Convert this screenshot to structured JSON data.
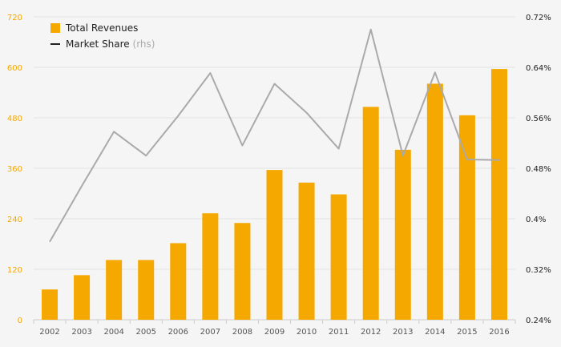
{
  "chart_data": {
    "type": "bar+line",
    "categories": [
      "2002",
      "2003",
      "2004",
      "2005",
      "2006",
      "2007",
      "2008",
      "2009",
      "2010",
      "2011",
      "2012",
      "2013",
      "2014",
      "2015",
      "2016"
    ],
    "series": [
      {
        "name": "Total Revenues",
        "type": "bar",
        "axis": "left",
        "color": "#f5a800",
        "values": [
          72,
          106,
          142,
          142,
          182,
          253,
          230,
          356,
          326,
          298,
          506,
          404,
          561,
          486,
          596
        ]
      },
      {
        "name": "Market Share",
        "name_suffix": "(rhs)",
        "type": "line",
        "axis": "right",
        "color": "#aaaaaa",
        "values": [
          0.3635,
          0.452,
          0.538,
          0.5,
          0.563,
          0.631,
          0.516,
          0.614,
          0.568,
          0.511,
          0.7,
          0.5,
          0.632,
          0.494,
          0.493
        ]
      }
    ],
    "left_axis": {
      "min": 0,
      "max": 720,
      "ticks": [
        "0",
        "120",
        "240",
        "360",
        "480",
        "600",
        "720"
      ]
    },
    "right_axis": {
      "min": 0.24,
      "max": 0.72,
      "ticks": [
        "0.24%",
        "0.32%",
        "0.4%",
        "0.48%",
        "0.56%",
        "0.64%",
        "0.72%"
      ]
    },
    "grid": true,
    "legend_position": "top-left"
  }
}
